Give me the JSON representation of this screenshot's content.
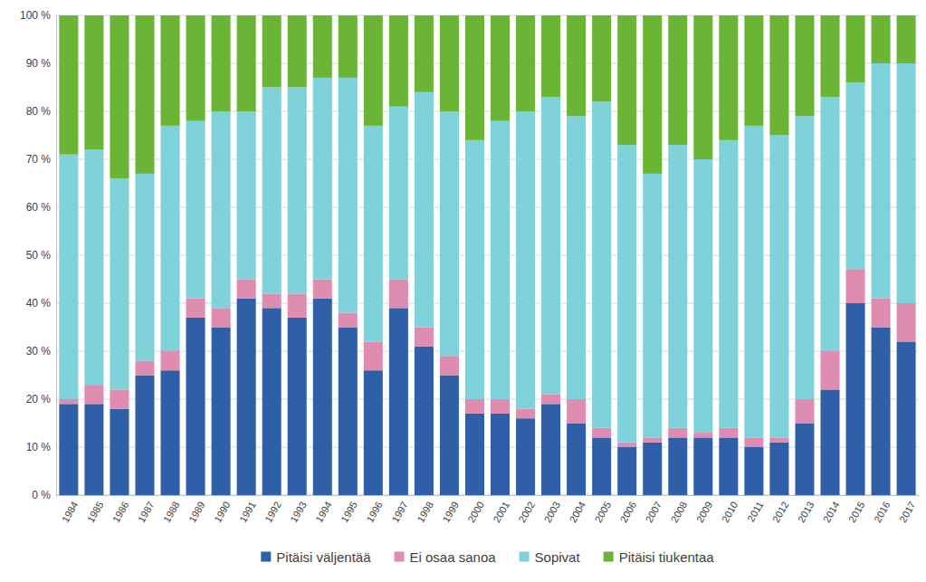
{
  "chart_data": {
    "type": "bar",
    "stacked": true,
    "grid": true,
    "legend": "bottom",
    "categories": [
      "1984",
      "1985",
      "1986",
      "1987",
      "1988",
      "1989",
      "1990",
      "1991",
      "1992",
      "1993",
      "1994",
      "1995",
      "1996",
      "1997",
      "1998",
      "1999",
      "2000",
      "2001",
      "2002",
      "2003",
      "2004",
      "2005",
      "2006",
      "2007",
      "2008",
      "2009",
      "2010",
      "2011",
      "2012",
      "2013",
      "2014",
      "2015",
      "2016",
      "2017"
    ],
    "series": [
      {
        "name": "Pitäisi väljentää",
        "color": "#2f5fa7",
        "values": [
          19,
          19,
          18,
          25,
          26,
          37,
          35,
          41,
          39,
          37,
          41,
          35,
          26,
          39,
          31,
          25,
          17,
          17,
          16,
          19,
          15,
          12,
          10,
          11,
          12,
          12,
          12,
          10,
          11,
          15,
          22,
          40,
          35,
          32
        ]
      },
      {
        "name": "Ei osaa sanoa",
        "color": "#de8db0",
        "values": [
          1,
          4,
          4,
          3,
          4,
          4,
          4,
          4,
          3,
          5,
          4,
          3,
          6,
          6,
          4,
          4,
          3,
          3,
          2,
          2,
          5,
          2,
          1,
          1,
          2,
          1,
          2,
          2,
          1,
          5,
          8,
          7,
          6,
          8
        ]
      },
      {
        "name": "Sopivat",
        "color": "#7fd1da",
        "values": [
          51,
          49,
          44,
          39,
          47,
          37,
          41,
          35,
          43,
          43,
          42,
          49,
          45,
          36,
          49,
          51,
          54,
          58,
          62,
          62,
          59,
          68,
          62,
          55,
          59,
          57,
          60,
          65,
          63,
          59,
          53,
          39,
          49,
          50
        ]
      },
      {
        "name": "Pitäisi tiukentaa",
        "color": "#6ab536",
        "values": [
          29,
          28,
          34,
          33,
          23,
          22,
          20,
          20,
          15,
          15,
          13,
          13,
          23,
          19,
          16,
          20,
          26,
          22,
          20,
          17,
          21,
          18,
          27,
          33,
          27,
          30,
          26,
          23,
          25,
          21,
          17,
          14,
          10,
          10
        ]
      }
    ],
    "ylim": [
      0,
      100
    ],
    "yticks": [
      {
        "value": 0,
        "label": "0 %"
      },
      {
        "value": 10,
        "label": "10 %"
      },
      {
        "value": 20,
        "label": "20 %"
      },
      {
        "value": 30,
        "label": "30 %"
      },
      {
        "value": 40,
        "label": "40 %"
      },
      {
        "value": 50,
        "label": "50 %"
      },
      {
        "value": 60,
        "label": "60 %"
      },
      {
        "value": 70,
        "label": "70 %"
      },
      {
        "value": 80,
        "label": "80 %"
      },
      {
        "value": 90,
        "label": "90 %"
      },
      {
        "value": 100,
        "label": "100 %"
      }
    ]
  }
}
